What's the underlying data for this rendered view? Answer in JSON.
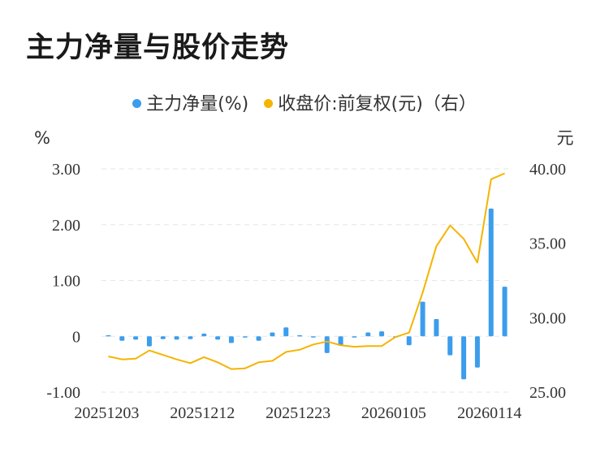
{
  "title": "主力净量与股价走势",
  "legend": {
    "bar_label": "主力净量(%)",
    "line_label": "收盘价:前复权(元)（右）"
  },
  "colors": {
    "bar": "#3b9ded",
    "line": "#f5b400",
    "grid": "#e6e6e6"
  },
  "chart_data": {
    "type": "bar",
    "left_unit": "%",
    "right_unit": "元",
    "x_tick_labels": [
      "20251203",
      "20251212",
      "20251223",
      "20260105",
      "20260114"
    ],
    "x_tick_index": [
      0,
      7,
      14,
      21,
      28
    ],
    "y_left": {
      "min": -1.0,
      "max": 3.0,
      "ticks": [
        3.0,
        2.0,
        1.0,
        0,
        -1.0
      ],
      "tick_labels": [
        "3.00",
        "2.00",
        "1.00",
        "0",
        "-1.00"
      ]
    },
    "y_right": {
      "min": 25.0,
      "max": 40.0,
      "ticks": [
        40.0,
        35.0,
        30.0,
        25.0
      ],
      "tick_labels": [
        "40.00",
        "35.00",
        "30.00",
        "25.00"
      ]
    },
    "grid": true,
    "legend_position": "top",
    "series": [
      {
        "name": "主力净量(%)",
        "type": "bar",
        "axis": "left",
        "values": [
          0.02,
          -0.08,
          -0.06,
          -0.18,
          -0.05,
          -0.06,
          -0.05,
          0.05,
          -0.06,
          -0.12,
          0.0,
          -0.08,
          0.07,
          0.16,
          0.02,
          -0.02,
          -0.3,
          -0.17,
          -0.02,
          0.07,
          0.09,
          0.0,
          -0.16,
          0.62,
          0.31,
          -0.34,
          -0.77,
          -0.56,
          2.29,
          0.89
        ]
      },
      {
        "name": "收盘价:前复权(元)（右）",
        "type": "line",
        "axis": "right",
        "values": [
          27.4,
          27.2,
          27.25,
          27.8,
          27.5,
          27.2,
          26.95,
          27.35,
          27.0,
          26.55,
          26.6,
          27.0,
          27.1,
          27.7,
          27.85,
          28.2,
          28.4,
          28.15,
          28.05,
          28.1,
          28.1,
          28.7,
          29.0,
          31.7,
          34.8,
          36.2,
          35.3,
          33.7,
          39.3,
          39.7
        ]
      }
    ]
  }
}
